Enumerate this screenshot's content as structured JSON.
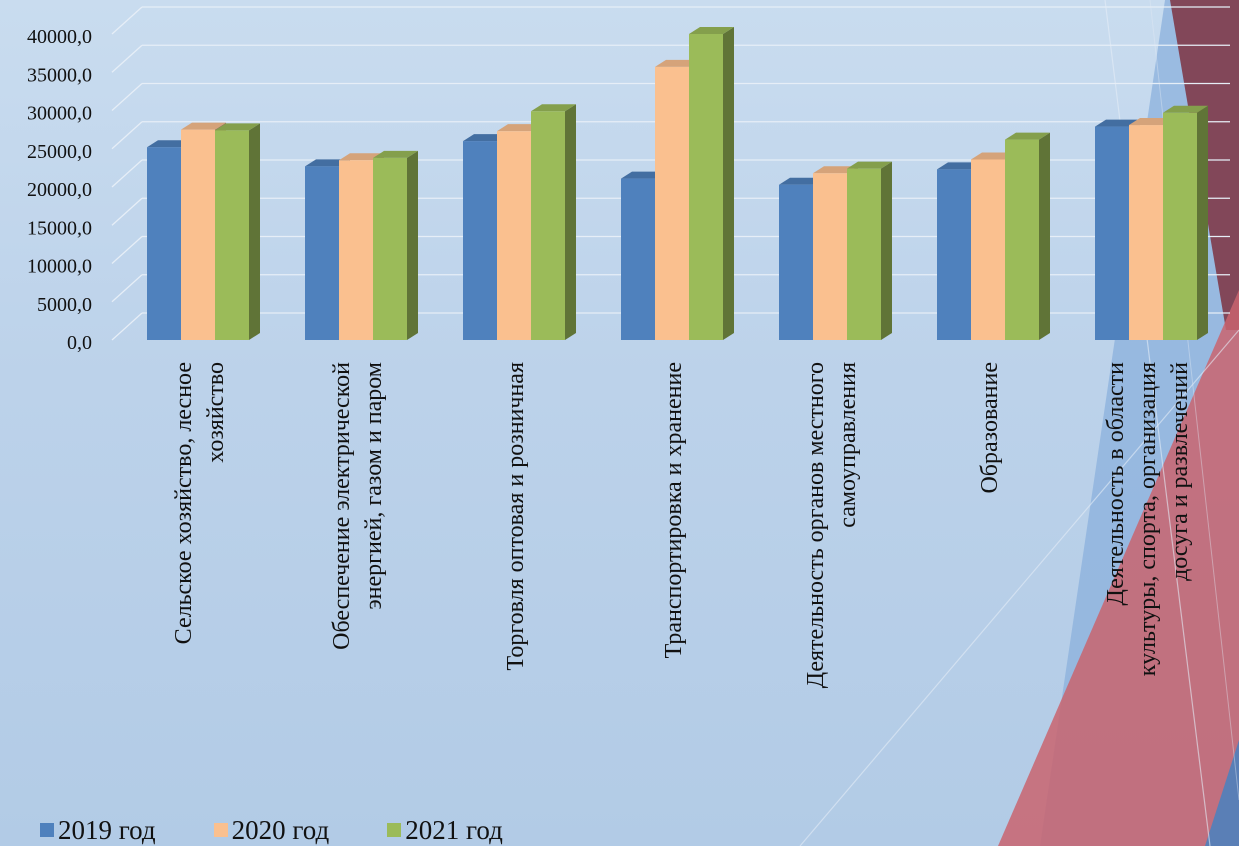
{
  "slide": {
    "accent_dark_red": "#7f3b4a",
    "accent_light_red": "#c9646e",
    "accent_blue": "#8bb0dc"
  },
  "chart_data": {
    "type": "bar",
    "style": "3d-clustered-column",
    "title": "",
    "xlabel": "",
    "ylabel": "",
    "ylim": [
      0,
      40000
    ],
    "y_ticks": [
      "0,0",
      "5000,0",
      "10000,0",
      "15000,0",
      "20000,0",
      "25000,0",
      "30000,0",
      "35000,0",
      "40000,0"
    ],
    "grid": true,
    "legend_position": "bottom-left",
    "categories": [
      [
        "Сельское хозяйство, лесное",
        "хозяйство"
      ],
      [
        "Обеспечение электрической",
        "энергией, газом и паром"
      ],
      [
        "Торговля оптовая и розничная"
      ],
      [
        "Транспортировка и хранение"
      ],
      [
        "Деятельность органов местного",
        "самоуправления"
      ],
      [
        "Образование"
      ],
      [
        "Деятельность в области",
        "культуры, спорта, организация",
        "досуга и развлечений"
      ]
    ],
    "series": [
      {
        "name": "2019 год",
        "color": "#4f81bd",
        "values": [
          25200,
          22700,
          26000,
          21100,
          20300,
          22300,
          27900
        ]
      },
      {
        "name": "2020 год",
        "color": "#fac08f",
        "values": [
          27500,
          23500,
          27300,
          35700,
          21800,
          23600,
          28100
        ]
      },
      {
        "name": "2021 год",
        "color": "#9bbb59",
        "values": [
          27400,
          23800,
          29900,
          40000,
          22400,
          26200,
          29700
        ]
      }
    ]
  }
}
